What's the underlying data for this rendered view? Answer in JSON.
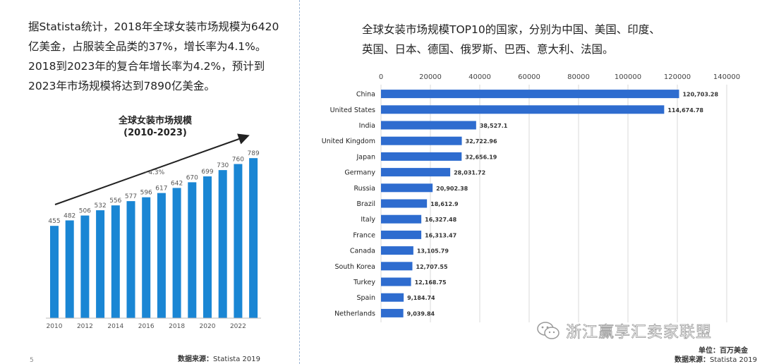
{
  "page_number": "5",
  "left_text": {
    "lines": [
      "据Statista统计，2018年全球女装市场规模为6420",
      "亿美金，占服装全品类的37%，增长率为4.1%。",
      "2018到2023年的复合年增长率为4.2%，预计到",
      "2023年市场规模将达到7890亿美金。"
    ]
  },
  "left_source": {
    "label": "数据来源：",
    "value": "Statista 2019"
  },
  "right_text": {
    "lines": [
      "全球女装市场规模TOP10的国家，分别为中国、美国、印度、",
      "英国、日本、德国、俄罗斯、巴西、意大利、法国。"
    ]
  },
  "unit": "单位：百万美金",
  "right_source": {
    "label": "数据来源：",
    "value": "Statista 2019"
  },
  "watermark": "浙江赢享汇卖家联盟",
  "colors": {
    "left_bar": "#1a86d4",
    "right_bar": "#2e6ccf",
    "grid": "#d8d8d8",
    "arrow": "#222222"
  },
  "chart_data": [
    {
      "type": "bar",
      "title": "全球女装市场规模",
      "subtitle": "(2010-2023)",
      "categories": [
        "2010",
        "2011",
        "2012",
        "2013",
        "2014",
        "2015",
        "2016",
        "2017",
        "2018",
        "2019",
        "2020",
        "2021",
        "2022",
        "2023"
      ],
      "values": [
        455,
        482,
        506,
        532,
        556,
        577,
        596,
        617,
        642,
        670,
        699,
        730,
        760,
        789
      ],
      "x_tick_labels": [
        "2010",
        "2012",
        "2014",
        "2016",
        "2018",
        "2020",
        "2022"
      ],
      "trend_annotation": "~4.3%",
      "ylim": [
        0,
        800
      ],
      "grid": false
    },
    {
      "type": "bar",
      "orientation": "horizontal",
      "categories": [
        "China",
        "United States",
        "India",
        "United Kingdom",
        "Japan",
        "Germany",
        "Russia",
        "Brazil",
        "Italy",
        "France",
        "Canada",
        "South Korea",
        "Turkey",
        "Spain",
        "Netherlands"
      ],
      "values": [
        120703.28,
        114674.78,
        38527.1,
        32722.96,
        32656.19,
        28031.72,
        20902.38,
        18612.9,
        16327.48,
        16313.47,
        13105.79,
        12707.55,
        12168.75,
        9184.74,
        9039.84
      ],
      "value_labels": [
        "120,703.28",
        "114,674.78",
        "38,527.1",
        "32,722.96",
        "32,656.19",
        "28,031.72",
        "20,902.38",
        "18,612.9",
        "16,327.48",
        "16,313.47",
        "13,105.79",
        "12,707.55",
        "12,168.75",
        "9,184.74",
        "9,039.84"
      ],
      "x_ticks": [
        0,
        20000,
        40000,
        60000,
        80000,
        100000,
        120000,
        140000
      ],
      "xlim": [
        0,
        140000
      ],
      "grid": true
    }
  ]
}
